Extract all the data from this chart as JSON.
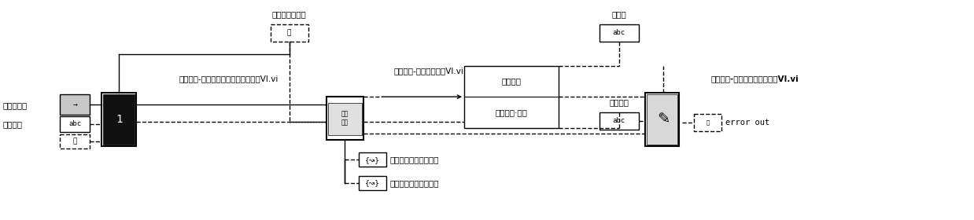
{
  "bg_color": "#ffffff",
  "fig_width": 12.38,
  "fig_height": 2.8,
  "dpi": 100,
  "labels": {
    "sw_lib_path": "软件库路径",
    "prog_code": "程序编码",
    "vi1_name": "软件提取-查找软件对应目标码地址子VI.vi",
    "vi2_name": "软件提取-软件自动拷贝VI.vi",
    "vi3_name": "软件提取-软件提取信息记录子VI.vi",
    "sw_target_info": "软件目标码信息",
    "operator": "操作员",
    "sw_code": "软件编码",
    "sw_version": "软件版本·归档",
    "plugin_no": "插件图号",
    "error_out": "error out",
    "unfinished": "未完成拷贝的程序文件",
    "finished": "已完成拷贝的程序文件",
    "num_data": "数据\n路径"
  },
  "font_size_main": 7.5,
  "font_size_small": 6.5,
  "font_family": "SimHei",
  "colors": {
    "black": "#000000",
    "white": "#ffffff",
    "light_gray": "#d0d0d0",
    "dark": "#1a1a1a",
    "mid_gray": "#888888"
  }
}
